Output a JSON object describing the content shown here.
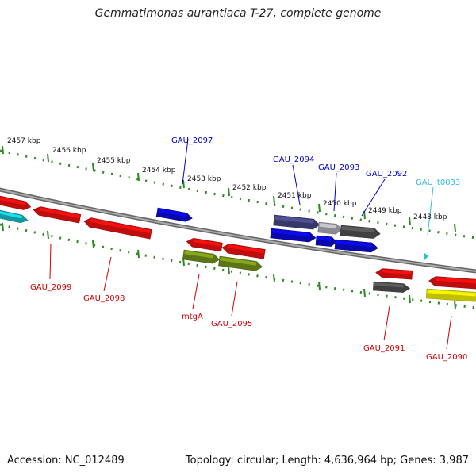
{
  "title": "Gemmatimonas aurantiaca T-27, complete genome",
  "footer": {
    "accession": "Accession: NC_012489",
    "summary": "Topology: circular; Length: 4,636,964 bp; Genes: 3,987"
  },
  "colors": {
    "backbone": "#888888",
    "tick_green": "#2a8a1f",
    "label_red": "#cc0000",
    "label_blue": "#0000cc",
    "label_cyan": "#33bbdd",
    "gene_red": "#ff1010",
    "gene_blue": "#0a0ae6",
    "gene_olive": "#7a9a1a",
    "gene_dark": "#555555",
    "gene_indigo": "#4a4a8a",
    "gene_light": "#b8b8c0",
    "gene_yellow": "#ffff00",
    "gene_cyan": "#19c9d6"
  },
  "kbp_ticks": [
    "2457 kbp",
    "2456 kbp",
    "2455 kbp",
    "2454 kbp",
    "2453 kbp",
    "2452 kbp",
    "2451 kbp",
    "2450 kbp",
    "2449 kbp",
    "2448 kbp"
  ],
  "genes": [
    {
      "name": "GAU_2099",
      "color": "gene_red",
      "strand": "-"
    },
    {
      "name": "GAU_2098",
      "color": "gene_red",
      "strand": "-"
    },
    {
      "name": "GAU_2097",
      "color": "gene_blue",
      "strand": "+"
    },
    {
      "name": "mtgA",
      "color": "gene_olive",
      "strand": "-"
    },
    {
      "name": "GAU_2095",
      "color": "gene_red",
      "strand": "-"
    },
    {
      "name": "GAU_2094",
      "color": "gene_blue",
      "strand": "+"
    },
    {
      "name": "GAU_2093",
      "color": "gene_blue",
      "strand": "+"
    },
    {
      "name": "GAU_2092",
      "color": "gene_blue",
      "strand": "+"
    },
    {
      "name": "GAU_2091",
      "color": "gene_red",
      "strand": "-"
    },
    {
      "name": "GAU_2090",
      "color": "gene_red",
      "strand": "-"
    },
    {
      "name": "GAU_t0033",
      "color": "gene_cyan",
      "strand": "+"
    }
  ]
}
